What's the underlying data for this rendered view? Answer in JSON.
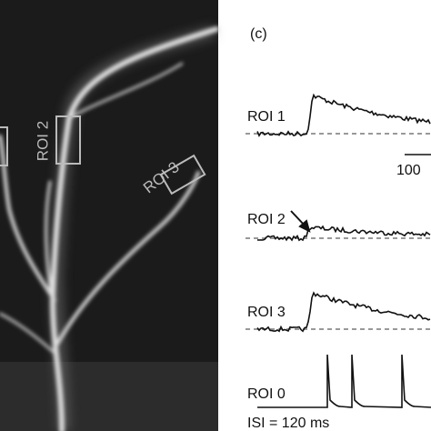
{
  "image": {
    "roi_labels": [
      "ROI 2",
      "ROI 3"
    ]
  },
  "panel": {
    "label": "(c)",
    "traces": [
      {
        "label": "ROI 1"
      },
      {
        "label": "ROI 2"
      },
      {
        "label": "ROI 3"
      },
      {
        "label": "ROI 0"
      }
    ],
    "scale_bar": "100",
    "caption": "ISI = 120 ms"
  }
}
